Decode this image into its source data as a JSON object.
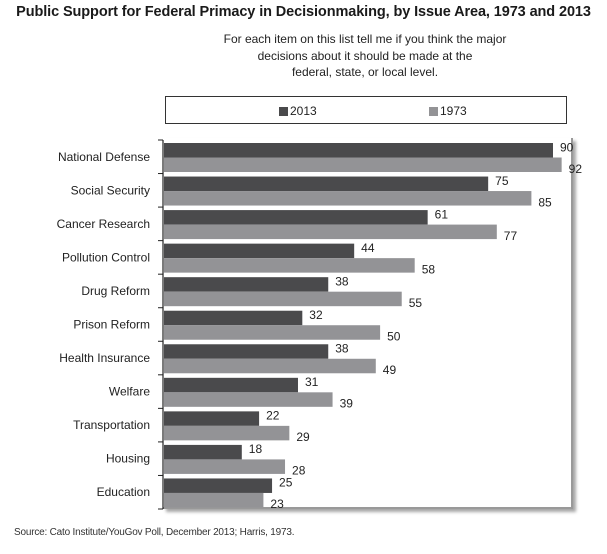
{
  "chart_data": {
    "type": "bar",
    "orientation": "horizontal",
    "title": "Public Support for Federal Primacy in Decisionmaking, by Issue Area, 1973 and 2013",
    "subtitle": [
      "For each item on this list tell me if you think the major",
      "decisions about it should be made at the",
      "federal, state, or local level."
    ],
    "categories": [
      "National Defense",
      "Social Security",
      "Cancer Research",
      "Pollution Control",
      "Drug Reform",
      "Prison Reform",
      "Health Insurance",
      "Welfare",
      "Transportation",
      "Housing",
      "Education"
    ],
    "series": [
      {
        "name": "2013",
        "color": "#4a4a4c",
        "values": [
          90,
          75,
          61,
          44,
          38,
          32,
          38,
          31,
          22,
          18,
          25
        ]
      },
      {
        "name": "1973",
        "color": "#939396",
        "values": [
          92,
          85,
          77,
          58,
          55,
          50,
          49,
          39,
          29,
          28,
          23
        ]
      }
    ],
    "xlabel": "",
    "ylabel": "",
    "xlim": [
      0,
      95
    ],
    "grid": false,
    "legend_position": "top",
    "source": "Source: Cato Institute/YouGov Poll, December 2013; Harris, 1973."
  }
}
